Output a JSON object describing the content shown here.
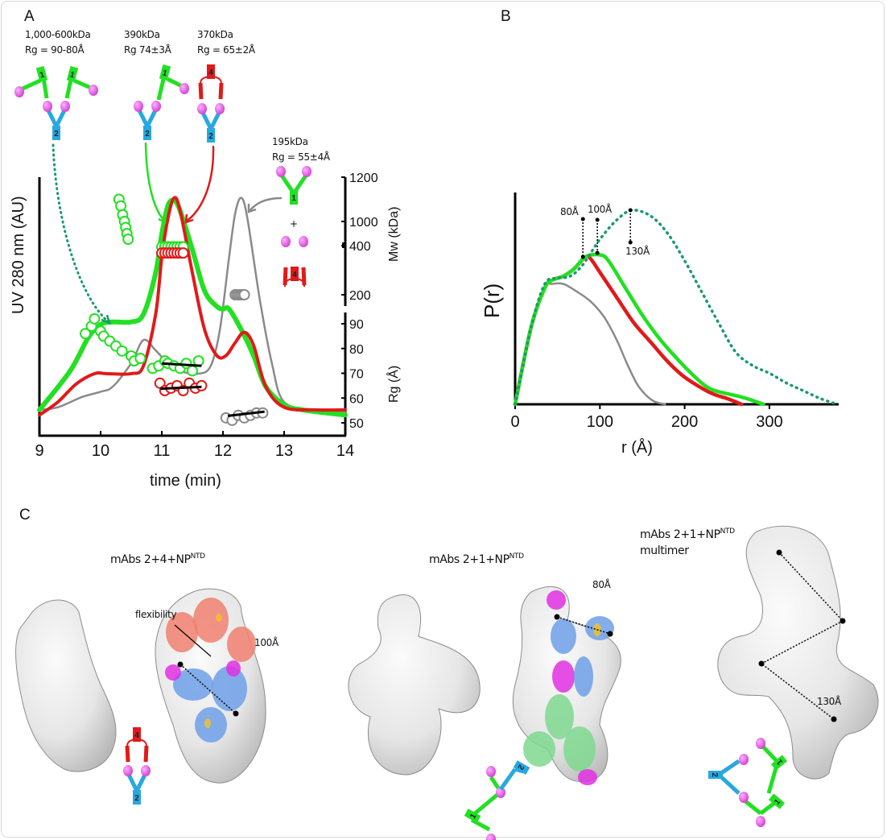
{
  "panels": {
    "a": "A",
    "b": "B",
    "c": "C"
  },
  "colors": {
    "green": "#22e022",
    "red": "#e01a1a",
    "gray": "#8a8a8a",
    "teal": "#1a9a6a",
    "blue": "#29a8e0",
    "pink": "#e060e0"
  },
  "panel_a": {
    "species": [
      {
        "mass": "1,000-600kDa",
        "rg": "Rg = 90-80Å"
      },
      {
        "mass": "390kDa",
        "rg": "Rg 74±3Å"
      },
      {
        "mass": "370kDa",
        "rg": "Rg = 65±2Å"
      },
      {
        "mass": "195kDa",
        "rg": "Rg = 55±4Å"
      }
    ],
    "plus": "+",
    "mab_labels": {
      "mab1": "1",
      "mab2": "2",
      "mab4": "4"
    }
  },
  "chart_data": [
    {
      "type": "line",
      "panel": "A",
      "xlabel": "time (min)",
      "ylabel": "UV 280 nm (AU)",
      "y2label": "Mw (kDa)",
      "y3label": "Rg (Å)",
      "xlim": [
        9,
        14
      ],
      "xticks": [
        "9",
        "10",
        "11",
        "12",
        "13",
        "14"
      ],
      "mw_ticks": [
        "1200",
        "1000",
        "400",
        "200"
      ],
      "rg_ticks": [
        "90",
        "80",
        "70",
        "60",
        "50"
      ],
      "grid": false,
      "series": [
        {
          "color": "#22e022",
          "x": [
            9,
            9.5,
            9.8,
            10,
            10.2,
            10.5,
            10.7,
            10.9,
            11,
            11.1,
            11.2,
            11.3,
            11.5,
            11.7,
            11.9,
            12,
            12.1,
            12.3,
            12.5,
            12.7,
            13,
            13.3,
            14
          ],
          "y": [
            0.1,
            0.25,
            0.38,
            0.43,
            0.44,
            0.44,
            0.47,
            0.63,
            0.78,
            0.89,
            0.91,
            0.87,
            0.72,
            0.56,
            0.5,
            0.49,
            0.49,
            0.41,
            0.31,
            0.19,
            0.12,
            0.1,
            0.08
          ]
        },
        {
          "color": "#e01a1a",
          "x": [
            9,
            9.3,
            9.6,
            9.9,
            10.1,
            10.5,
            10.7,
            10.9,
            11,
            11.1,
            11.2,
            11.3,
            11.5,
            11.7,
            11.9,
            12.05,
            12.2,
            12.35,
            12.5,
            12.7,
            13,
            13.5,
            14
          ],
          "y": [
            0.08,
            0.13,
            0.2,
            0.24,
            0.24,
            0.24,
            0.27,
            0.47,
            0.69,
            0.84,
            0.92,
            0.87,
            0.63,
            0.41,
            0.31,
            0.31,
            0.36,
            0.4,
            0.35,
            0.19,
            0.11,
            0.1,
            0.1
          ]
        },
        {
          "color": "#8a8a8a",
          "x": [
            9,
            9.3,
            9.7,
            10,
            10.2,
            10.5,
            10.7,
            10.9,
            11.1,
            11.3,
            11.6,
            11.8,
            11.95,
            12.1,
            12.2,
            12.3,
            12.4,
            12.6,
            12.8,
            13,
            13.5,
            14
          ],
          "y": [
            0.1,
            0.11,
            0.15,
            0.17,
            0.19,
            0.28,
            0.37,
            0.33,
            0.28,
            0.25,
            0.24,
            0.27,
            0.41,
            0.69,
            0.86,
            0.92,
            0.84,
            0.53,
            0.28,
            0.13,
            0.1,
            0.09
          ]
        }
      ],
      "mw_points": [
        {
          "color": "#22e022",
          "x": [
            10.3,
            10.33,
            10.36,
            10.39,
            10.41,
            10.43,
            10.45
          ],
          "y": [
            1100,
            1070,
            1030,
            1000,
            850,
            700,
            560
          ]
        },
        {
          "color": "#22e022",
          "x": [
            11.0,
            11.05,
            11.1,
            11.15,
            11.2,
            11.25,
            11.3,
            11.35
          ],
          "y": [
            395,
            395,
            395,
            395,
            395,
            395,
            395,
            395
          ]
        },
        {
          "color": "#e01a1a",
          "x": [
            11.0,
            11.05,
            11.1,
            11.15,
            11.2,
            11.25,
            11.3,
            11.35
          ],
          "y": [
            370,
            370,
            370,
            370,
            370,
            370,
            370,
            370
          ]
        },
        {
          "color": "#8a8a8a",
          "x": [
            12.2,
            12.23,
            12.26,
            12.29,
            12.32,
            12.35
          ],
          "y": [
            200,
            200,
            200,
            200,
            200,
            200
          ]
        }
      ],
      "rg_points": [
        {
          "color": "#22e022",
          "x": [
            9.75,
            9.85,
            9.9,
            10.0,
            10.05,
            10.15,
            10.25,
            10.35,
            10.5,
            10.55,
            10.65
          ],
          "y": [
            86,
            89,
            92,
            87,
            85,
            83,
            81,
            79,
            77,
            75,
            76
          ]
        },
        {
          "color": "#22e022",
          "x": [
            10.85,
            10.95,
            11.05,
            11.1,
            11.2,
            11.3,
            11.4,
            11.5,
            11.6
          ],
          "y": [
            72,
            73,
            75,
            74,
            73,
            72,
            74,
            71,
            75
          ]
        },
        {
          "color": "#e01a1a",
          "x": [
            10.97,
            11.05,
            11.15,
            11.25,
            11.35,
            11.45,
            11.55,
            11.65
          ],
          "y": [
            66,
            63,
            64,
            65,
            63,
            66,
            64,
            65
          ]
        },
        {
          "color": "#8a8a8a",
          "x": [
            12.05,
            12.15,
            12.25,
            12.35,
            12.45,
            12.55,
            12.65
          ],
          "y": [
            52,
            51,
            53,
            52,
            53,
            54,
            54
          ]
        }
      ],
      "rg_fits": [
        {
          "x": [
            11.0,
            11.65
          ],
          "y": [
            74,
            73
          ]
        },
        {
          "x": [
            10.98,
            11.65
          ],
          "y": [
            63.8,
            64.5
          ]
        },
        {
          "x": [
            12.08,
            12.68
          ],
          "y": [
            52.8,
            54.5
          ]
        }
      ]
    },
    {
      "type": "line",
      "panel": "B",
      "xlabel": "r (Å)",
      "ylabel": "P(r)",
      "xlim": [
        0,
        380
      ],
      "xticks": [
        "0",
        "100",
        "200",
        "300"
      ],
      "grid": false,
      "series": [
        {
          "color": "#8a8a8a",
          "style": "solid",
          "x": [
            0,
            19,
            35,
            44,
            57,
            73,
            89,
            105,
            120,
            133,
            146,
            162,
            177
          ],
          "y": [
            0,
            0.4,
            0.6,
            0.62,
            0.62,
            0.58,
            0.53,
            0.45,
            0.33,
            0.2,
            0.09,
            0.02,
            0
          ]
        },
        {
          "color": "#e01a1a",
          "style": "solid",
          "x": [
            0,
            19,
            35,
            44,
            57,
            70,
            83,
            89,
            100,
            120,
            140,
            160,
            180,
            200,
            230,
            250,
            267
          ],
          "y": [
            0,
            0.4,
            0.6,
            0.64,
            0.66,
            0.7,
            0.76,
            0.75,
            0.68,
            0.55,
            0.42,
            0.32,
            0.22,
            0.14,
            0.06,
            0.03,
            0
          ]
        },
        {
          "color": "#22e022",
          "style": "solid",
          "x": [
            0,
            19,
            35,
            44,
            57,
            70,
            83,
            100,
            110,
            130,
            150,
            170,
            190,
            210,
            230,
            255,
            265,
            280,
            293
          ],
          "y": [
            0,
            0.4,
            0.6,
            0.64,
            0.66,
            0.7,
            0.76,
            0.77,
            0.74,
            0.6,
            0.46,
            0.34,
            0.24,
            0.15,
            0.08,
            0.05,
            0.04,
            0.02,
            0
          ]
        },
        {
          "color": "#1a9a6a",
          "style": "dotted",
          "x": [
            0,
            19,
            35,
            50,
            65,
            80,
            100,
            120,
            138,
            160,
            180,
            200,
            220,
            240,
            260,
            280,
            300,
            320,
            340,
            360,
            380
          ],
          "y": [
            0,
            0.4,
            0.62,
            0.65,
            0.66,
            0.72,
            0.85,
            0.95,
            1.0,
            0.97,
            0.88,
            0.74,
            0.58,
            0.42,
            0.27,
            0.2,
            0.16,
            0.11,
            0.07,
            0.03,
            0
          ]
        }
      ],
      "annotations": [
        "80Å",
        "100Å",
        "130Å"
      ]
    }
  ],
  "panel_c": {
    "titles": [
      {
        "main": "mAbs 2+4+NP",
        "sup": "NTD"
      },
      {
        "main": "mAbs 2+1+NP",
        "sup": "NTD"
      },
      {
        "main": "mAbs 2+1+NP",
        "sup": "NTD",
        "line2": "multimer"
      }
    ],
    "flexibility": "flexibility",
    "distances": [
      "100Å",
      "80Å",
      "130Å"
    ]
  }
}
